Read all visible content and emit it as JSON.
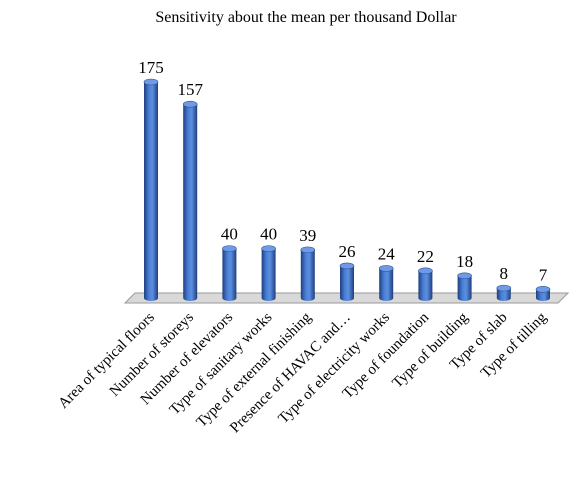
{
  "chart_data": {
    "type": "bar",
    "title": "Sensitivity about the mean per thousand Dollar",
    "xlabel": "",
    "ylabel": "",
    "ylim": [
      0,
      175
    ],
    "grid": false,
    "legend": "none",
    "bar_color": "#3a6bc4",
    "bar_dark_color": "#1f3f80",
    "floor_color": "#d9d9d9",
    "categories": [
      "Area of typical floors",
      "Number of storeys",
      "Number of elevators",
      "Type of sanitary works",
      "Type of external finishing",
      "Presence of HAVAC and…",
      "Type of electricity works",
      "Type of foundation",
      "Type of building",
      "Type of slab",
      "Type of tilling"
    ],
    "values": [
      175,
      157,
      40,
      40,
      39,
      26,
      24,
      22,
      18,
      8,
      7
    ]
  }
}
